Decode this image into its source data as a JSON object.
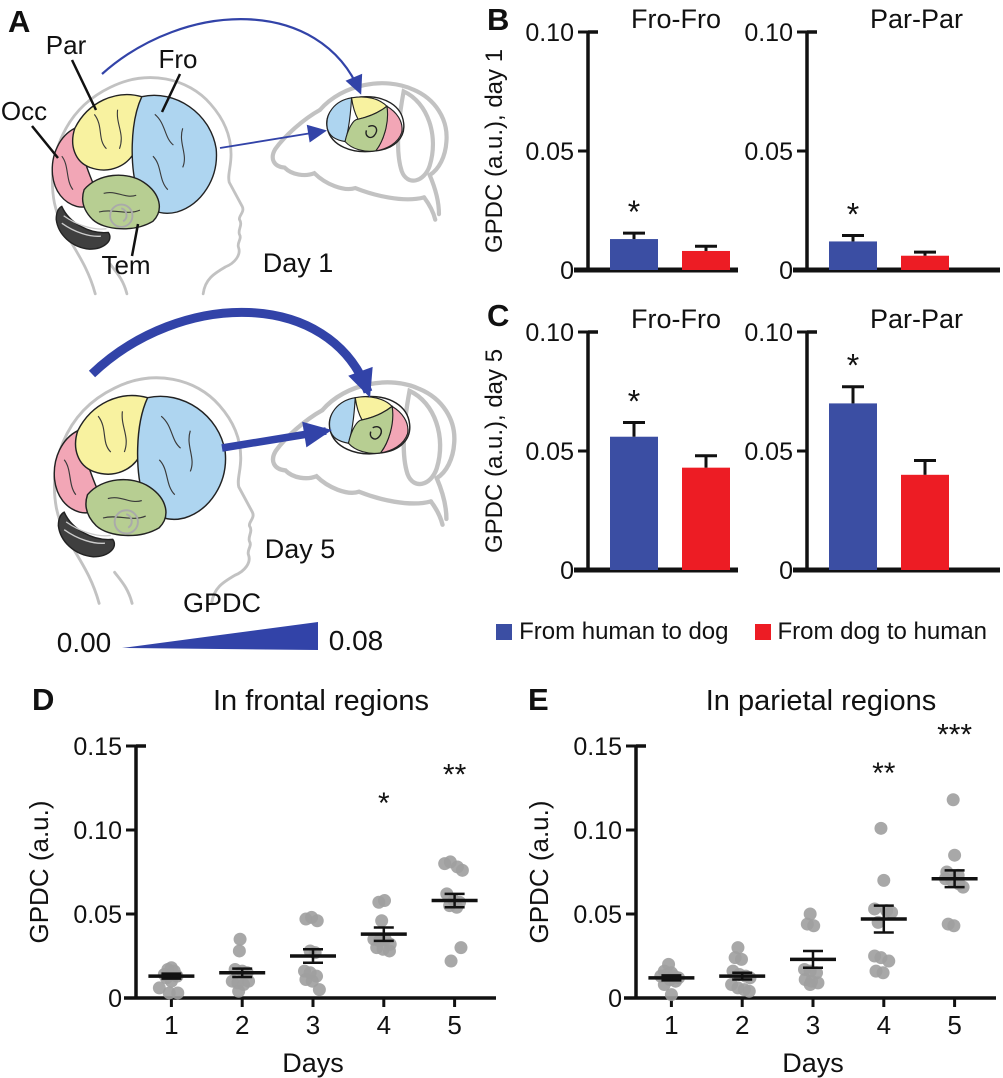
{
  "figure": {
    "panel_letters": {
      "a": "A",
      "b": "B",
      "c": "C",
      "d": "D",
      "e": "E"
    }
  },
  "colors": {
    "human_to_dog": "#3B4EA3",
    "dog_to_human": "#ED1C24",
    "arrow": "#3243A8",
    "dot": "#9E9E9E",
    "frontal": "#AED5F0",
    "parietal": "#F8F2A0",
    "occipital": "#F2A6B6",
    "temporal": "#B7CE92",
    "cerebellum": "#3F3F3F",
    "outline": "#C2C2C2"
  },
  "panel_a": {
    "region_labels": {
      "par": "Par",
      "fro": "Fro",
      "occ": "Occ",
      "tem": "Tem"
    },
    "day1_label": "Day 1",
    "day5_label": "Day 5",
    "scale": {
      "title": "GPDC",
      "min": "0.00",
      "max": "0.08"
    }
  },
  "legend": {
    "items": [
      {
        "label": "From human to dog",
        "color_key": "human_to_dog"
      },
      {
        "label": "From dog to human",
        "color_key": "dog_to_human"
      }
    ]
  },
  "chart_data": [
    {
      "id": "fro_day1",
      "panel": "B",
      "type": "bar",
      "title": "Fro-Fro",
      "ylabel": "GPDC (a.u.), day 1",
      "ylim": [
        0,
        0.1
      ],
      "yticks": [
        {
          "v": 0,
          "label": "0"
        },
        {
          "v": 0.05,
          "label": "0.05"
        },
        {
          "v": 0.1,
          "label": "0.10"
        }
      ],
      "bars": [
        {
          "series": "From human to dog",
          "value": 0.013,
          "sem": 0.0025,
          "sig": "*"
        },
        {
          "series": "From dog to human",
          "value": 0.008,
          "sem": 0.002,
          "sig": ""
        }
      ]
    },
    {
      "id": "par_day1",
      "panel": "B",
      "type": "bar",
      "title": "Par-Par",
      "ylabel": null,
      "ylim": [
        0,
        0.1
      ],
      "yticks": [
        {
          "v": 0,
          "label": "0"
        },
        {
          "v": 0.05,
          "label": "0.05"
        },
        {
          "v": 0.1,
          "label": "0.10"
        }
      ],
      "bars": [
        {
          "series": "From human to dog",
          "value": 0.012,
          "sem": 0.0025,
          "sig": "*"
        },
        {
          "series": "From dog to human",
          "value": 0.006,
          "sem": 0.0015,
          "sig": ""
        }
      ]
    },
    {
      "id": "fro_day5",
      "panel": "C",
      "type": "bar",
      "title": "Fro-Fro",
      "ylabel": "GPDC (a.u.), day 5",
      "ylim": [
        0,
        0.1
      ],
      "yticks": [
        {
          "v": 0,
          "label": "0"
        },
        {
          "v": 0.05,
          "label": "0.05"
        },
        {
          "v": 0.1,
          "label": "0.10"
        }
      ],
      "bars": [
        {
          "series": "From human to dog",
          "value": 0.056,
          "sem": 0.006,
          "sig": "*"
        },
        {
          "series": "From dog to human",
          "value": 0.043,
          "sem": 0.005,
          "sig": ""
        }
      ]
    },
    {
      "id": "par_day5",
      "panel": "C",
      "type": "bar",
      "title": "Par-Par",
      "ylabel": null,
      "ylim": [
        0,
        0.1
      ],
      "yticks": [
        {
          "v": 0,
          "label": "0"
        },
        {
          "v": 0.05,
          "label": "0.05"
        },
        {
          "v": 0.1,
          "label": "0.10"
        }
      ],
      "bars": [
        {
          "series": "From human to dog",
          "value": 0.07,
          "sem": 0.007,
          "sig": "*"
        },
        {
          "series": "From dog to human",
          "value": 0.04,
          "sem": 0.006,
          "sig": ""
        }
      ]
    },
    {
      "id": "frontal_scatter",
      "panel": "D",
      "type": "scatter",
      "title": "In frontal regions",
      "xlabel": "Days",
      "ylabel": "GPDC (a.u.)",
      "ylim": [
        0,
        0.15
      ],
      "yticks": [
        {
          "v": 0,
          "label": "0"
        },
        {
          "v": 0.05,
          "label": "0.05"
        },
        {
          "v": 0.1,
          "label": "0.10"
        },
        {
          "v": 0.15,
          "label": "0.15"
        }
      ],
      "days": [
        {
          "day": 1,
          "mean": 0.013,
          "sem": 0.0015,
          "points": [
            [
              0.83,
              0.006
            ],
            [
              0.9,
              0.014
            ],
            [
              0.95,
              0.017
            ],
            [
              1.0,
              0.018
            ],
            [
              1.04,
              0.016
            ],
            [
              1.08,
              0.013
            ],
            [
              0.93,
              0.012
            ],
            [
              1.0,
              0.01
            ],
            [
              0.97,
              0.003
            ],
            [
              1.09,
              0.003
            ]
          ]
        },
        {
          "day": 2,
          "mean": 0.015,
          "sem": 0.0025,
          "points": [
            [
              1.97,
              0.035
            ],
            [
              1.96,
              0.028
            ],
            [
              1.9,
              0.017
            ],
            [
              2.0,
              0.016
            ],
            [
              2.07,
              0.015
            ],
            [
              1.86,
              0.01
            ],
            [
              1.94,
              0.009
            ],
            [
              2.02,
              0.008
            ],
            [
              2.09,
              0.01
            ],
            [
              1.95,
              0.004
            ]
          ]
        },
        {
          "day": 3,
          "mean": 0.025,
          "sem": 0.004,
          "points": [
            [
              2.9,
              0.047
            ],
            [
              2.98,
              0.048
            ],
            [
              3.06,
              0.046
            ],
            [
              2.96,
              0.028
            ],
            [
              3.03,
              0.027
            ],
            [
              2.88,
              0.016
            ],
            [
              2.96,
              0.015
            ],
            [
              3.05,
              0.013
            ],
            [
              2.9,
              0.011
            ],
            [
              2.99,
              0.01
            ],
            [
              3.09,
              0.005
            ]
          ]
        },
        {
          "day": 4,
          "mean": 0.038,
          "sem": 0.004,
          "points": [
            [
              3.93,
              0.057
            ],
            [
              4.01,
              0.058
            ],
            [
              3.97,
              0.046
            ],
            [
              3.86,
              0.035
            ],
            [
              3.94,
              0.034
            ],
            [
              4.02,
              0.035
            ],
            [
              4.09,
              0.032
            ],
            [
              3.9,
              0.03
            ],
            [
              3.99,
              0.029
            ],
            [
              4.08,
              0.028
            ]
          ]
        },
        {
          "day": 5,
          "mean": 0.058,
          "sem": 0.004,
          "points": [
            [
              4.86,
              0.08
            ],
            [
              4.94,
              0.081
            ],
            [
              5.04,
              0.078
            ],
            [
              5.11,
              0.076
            ],
            [
              4.89,
              0.062
            ],
            [
              4.99,
              0.058
            ],
            [
              5.07,
              0.057
            ],
            [
              4.93,
              0.055
            ],
            [
              5.03,
              0.054
            ],
            [
              5.09,
              0.03
            ],
            [
              4.95,
              0.022
            ]
          ]
        }
      ],
      "significance": [
        {
          "day": 4,
          "label": "*",
          "y": 0.11
        },
        {
          "day": 5,
          "label": "**",
          "y": 0.127
        }
      ]
    },
    {
      "id": "parietal_scatter",
      "panel": "E",
      "type": "scatter",
      "title": "In parietal regions",
      "xlabel": "Days",
      "ylabel": "GPDC (a.u.)",
      "ylim": [
        0,
        0.15
      ],
      "yticks": [
        {
          "v": 0,
          "label": "0"
        },
        {
          "v": 0.05,
          "label": "0.05"
        },
        {
          "v": 0.1,
          "label": "0.10"
        },
        {
          "v": 0.15,
          "label": "0.15"
        }
      ],
      "days": [
        {
          "day": 1,
          "mean": 0.012,
          "sem": 0.0015,
          "points": [
            [
              0.85,
              0.013
            ],
            [
              0.9,
              0.016
            ],
            [
              0.96,
              0.02
            ],
            [
              0.94,
              0.014
            ],
            [
              1.0,
              0.015
            ],
            [
              1.04,
              0.013
            ],
            [
              0.98,
              0.011
            ],
            [
              1.06,
              0.01
            ],
            [
              1.1,
              0.012
            ],
            [
              0.9,
              0.008
            ],
            [
              1.0,
              0.002
            ]
          ]
        },
        {
          "day": 2,
          "mean": 0.013,
          "sem": 0.002,
          "points": [
            [
              1.94,
              0.03
            ],
            [
              1.9,
              0.024
            ],
            [
              1.99,
              0.023
            ],
            [
              1.87,
              0.016
            ],
            [
              1.96,
              0.014
            ],
            [
              2.05,
              0.013
            ],
            [
              2.11,
              0.012
            ],
            [
              1.85,
              0.008
            ],
            [
              1.94,
              0.006
            ],
            [
              2.03,
              0.005
            ],
            [
              2.1,
              0.004
            ]
          ]
        },
        {
          "day": 3,
          "mean": 0.023,
          "sem": 0.005,
          "points": [
            [
              2.96,
              0.05
            ],
            [
              2.92,
              0.044
            ],
            [
              3.01,
              0.043
            ],
            [
              2.88,
              0.017
            ],
            [
              2.96,
              0.016
            ],
            [
              3.05,
              0.015
            ],
            [
              2.89,
              0.011
            ],
            [
              2.98,
              0.01
            ],
            [
              3.07,
              0.009
            ],
            [
              2.96,
              0.008
            ]
          ]
        },
        {
          "day": 4,
          "mean": 0.047,
          "sem": 0.008,
          "points": [
            [
              3.96,
              0.101
            ],
            [
              4.0,
              0.07
            ],
            [
              3.87,
              0.053
            ],
            [
              4.04,
              0.052
            ],
            [
              4.11,
              0.051
            ],
            [
              3.92,
              0.045
            ],
            [
              3.87,
              0.025
            ],
            [
              3.96,
              0.024
            ],
            [
              4.07,
              0.022
            ],
            [
              3.89,
              0.016
            ],
            [
              3.99,
              0.015
            ]
          ]
        },
        {
          "day": 5,
          "mean": 0.071,
          "sem": 0.005,
          "points": [
            [
              4.98,
              0.118
            ],
            [
              5.0,
              0.085
            ],
            [
              4.89,
              0.075
            ],
            [
              5.05,
              0.073
            ],
            [
              4.87,
              0.071
            ],
            [
              4.96,
              0.07
            ],
            [
              5.06,
              0.068
            ],
            [
              5.12,
              0.066
            ],
            [
              4.91,
              0.044
            ],
            [
              4.99,
              0.043
            ]
          ]
        }
      ],
      "significance": [
        {
          "day": 4,
          "label": "**",
          "y": 0.128
        },
        {
          "day": 5,
          "label": "***",
          "y": 0.151
        }
      ]
    }
  ]
}
